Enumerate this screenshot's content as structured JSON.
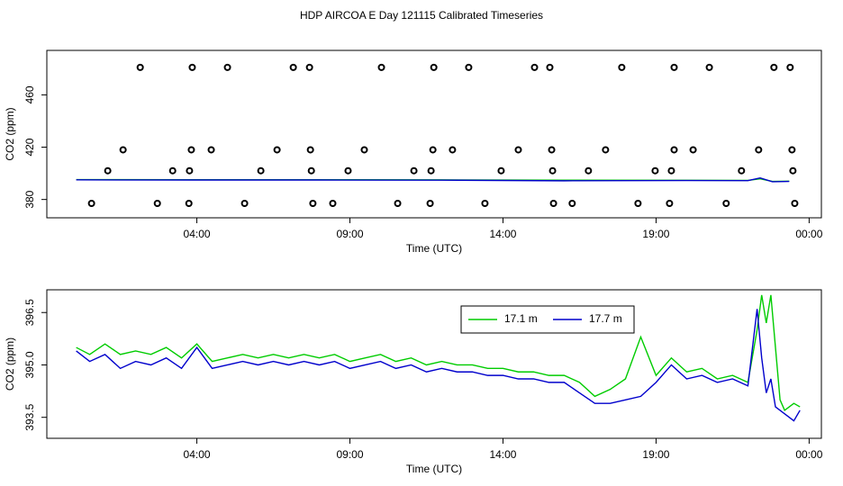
{
  "title": "HDP AIRCOA E  Day 121115  Calibrated Timeseries",
  "chart_data": [
    {
      "type": "scatter",
      "xlabel": "Time (UTC)",
      "ylabel": "CO2 (ppm)",
      "xlim": [
        -0.9,
        24.4
      ],
      "ylim": [
        366,
        494
      ],
      "xticks": [
        {
          "value": 4,
          "label": "04:00"
        },
        {
          "value": 9,
          "label": "09:00"
        },
        {
          "value": 14,
          "label": "14:00"
        },
        {
          "value": 19,
          "label": "19:00"
        },
        {
          "value": 24,
          "label": "00:00"
        }
      ],
      "yticks": [
        380,
        420,
        460
      ],
      "grid": false,
      "series": [
        {
          "type": "scatter",
          "color": "#000000",
          "x": [
            2.15,
            3.85,
            5.0,
            7.15,
            7.68,
            10.03,
            11.74,
            12.88,
            15.03,
            15.53,
            17.88,
            19.59,
            20.74,
            22.85,
            23.38,
            1.59,
            3.82,
            4.47,
            6.62,
            7.71,
            9.47,
            11.71,
            12.35,
            14.5,
            15.59,
            17.35,
            19.59,
            20.21,
            22.35,
            23.44,
            1.09,
            3.21,
            3.76,
            6.09,
            7.74,
            8.94,
            11.09,
            11.65,
            13.94,
            15.62,
            16.79,
            18.97,
            19.5,
            21.79,
            23.47,
            0.56,
            2.71,
            3.74,
            5.56,
            7.79,
            8.44,
            10.56,
            11.62,
            13.41,
            15.65,
            16.26,
            18.41,
            19.44,
            21.29,
            23.53
          ],
          "values": [
            481,
            481,
            481,
            481,
            481,
            481,
            481,
            481,
            481,
            481,
            481,
            481,
            481,
            481,
            481,
            418,
            418,
            418,
            418,
            418,
            418,
            418,
            418,
            418,
            418,
            418,
            418,
            418,
            418,
            418,
            402,
            402,
            402,
            402,
            402,
            402,
            402,
            402,
            402,
            402,
            402,
            402,
            402,
            402,
            402,
            377,
            377,
            377,
            377,
            377,
            377,
            377,
            377,
            377,
            377,
            377,
            377,
            377,
            377,
            377
          ]
        },
        {
          "type": "line",
          "color": "#00cc00",
          "x": [
            0.06,
            4,
            8,
            12,
            16,
            20,
            22,
            22.4,
            22.8,
            23.35
          ],
          "values": [
            395.2,
            395.1,
            395.1,
            395,
            394.8,
            394.7,
            394.6,
            395.8,
            393.8,
            394
          ]
        },
        {
          "type": "line",
          "color": "#0000cc",
          "x": [
            0.06,
            4,
            8,
            12,
            16,
            20,
            22,
            22.4,
            22.8,
            23.35
          ],
          "values": [
            395,
            394.9,
            394.9,
            394.8,
            394.3,
            394.5,
            394.4,
            396.5,
            393.6,
            393.8
          ]
        }
      ]
    },
    {
      "type": "line",
      "xlabel": "Time (UTC)",
      "ylabel": "CO2 (ppm)",
      "xlim": [
        -0.9,
        24.4
      ],
      "ylim": [
        392.9,
        397.15
      ],
      "xticks": [
        {
          "value": 4,
          "label": "04:00"
        },
        {
          "value": 9,
          "label": "09:00"
        },
        {
          "value": 14,
          "label": "14:00"
        },
        {
          "value": 19,
          "label": "19:00"
        },
        {
          "value": 24,
          "label": "00:00"
        }
      ],
      "yticks": [
        393.5,
        {
          "value": 395,
          "label": "395.0"
        },
        396.5
      ],
      "grid": false,
      "legend": "top",
      "series": [
        {
          "name": "17.1 m",
          "color": "#00cc00",
          "x": [
            0.06,
            0.5,
            1,
            1.5,
            2,
            2.5,
            3,
            3.5,
            4,
            4.5,
            5,
            5.5,
            6,
            6.5,
            7,
            7.5,
            8,
            8.5,
            9,
            9.5,
            10,
            10.5,
            11,
            11.5,
            12,
            12.5,
            13,
            13.5,
            14,
            14.5,
            15,
            15.5,
            16,
            16.5,
            17,
            17.5,
            18,
            18.5,
            19,
            19.5,
            20,
            20.5,
            21,
            21.5,
            22,
            22.3,
            22.45,
            22.6,
            22.75,
            22.9,
            23.05,
            23.2,
            23.35,
            23.5,
            23.7
          ],
          "values": [
            395.5,
            395.3,
            395.6,
            395.3,
            395.4,
            395.3,
            395.5,
            395.2,
            395.6,
            395.1,
            395.2,
            395.3,
            395.2,
            395.3,
            395.2,
            395.3,
            395.2,
            395.3,
            395.1,
            395.2,
            395.3,
            395.1,
            395.2,
            395.0,
            395.1,
            395.0,
            395.0,
            394.9,
            394.9,
            394.8,
            394.8,
            394.7,
            394.7,
            394.5,
            394.1,
            394.3,
            394.6,
            395.8,
            394.7,
            395.2,
            394.8,
            394.9,
            394.6,
            394.7,
            394.5,
            396.0,
            397.0,
            396.2,
            397.0,
            395.5,
            394.0,
            393.7,
            393.8,
            393.9,
            393.8
          ]
        },
        {
          "name": "17.7 m",
          "color": "#0000cc",
          "x": [
            0.06,
            0.5,
            1,
            1.5,
            2,
            2.5,
            3,
            3.5,
            4,
            4.5,
            5,
            5.5,
            6,
            6.5,
            7,
            7.5,
            8,
            8.5,
            9,
            9.5,
            10,
            10.5,
            11,
            11.5,
            12,
            12.5,
            13,
            13.5,
            14,
            14.5,
            15,
            15.5,
            16,
            16.5,
            17,
            17.5,
            18,
            18.5,
            19,
            19.5,
            20,
            20.5,
            21,
            21.5,
            22,
            22.3,
            22.45,
            22.6,
            22.75,
            22.9,
            23.05,
            23.2,
            23.35,
            23.5,
            23.7
          ],
          "values": [
            395.4,
            395.1,
            395.3,
            394.9,
            395.1,
            395.0,
            395.2,
            394.9,
            395.5,
            394.9,
            395.0,
            395.1,
            395.0,
            395.1,
            395.0,
            395.1,
            395.0,
            395.1,
            394.9,
            395.0,
            395.1,
            394.9,
            395.0,
            394.8,
            394.9,
            394.8,
            394.8,
            394.7,
            394.7,
            394.6,
            394.6,
            394.5,
            394.5,
            394.2,
            393.9,
            393.9,
            394.0,
            394.1,
            394.5,
            395.0,
            394.6,
            394.7,
            394.5,
            394.6,
            394.4,
            396.6,
            395.2,
            394.2,
            394.6,
            393.8,
            393.7,
            393.6,
            393.5,
            393.4,
            393.7
          ]
        }
      ]
    }
  ]
}
